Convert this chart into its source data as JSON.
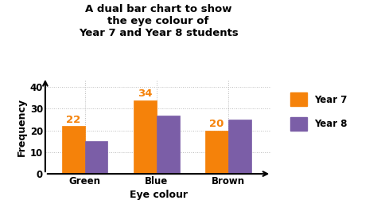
{
  "title": "A dual bar chart to show\nthe eye colour of\nYear 7 and Year 8 students",
  "categories": [
    "Green",
    "Blue",
    "Brown"
  ],
  "year7_values": [
    22,
    34,
    20
  ],
  "year8_values": [
    15,
    27,
    25
  ],
  "year7_color": "#F5820A",
  "year8_color": "#7B5EA7",
  "xlabel": "Eye colour",
  "ylabel": "Frequency",
  "yticks": [
    0,
    10,
    20,
    30,
    40
  ],
  "ylim": [
    0,
    43
  ],
  "bar_width": 0.32,
  "label_year7": "Year 7",
  "label_year8": "Year 8",
  "annotation_color": "#F5820A",
  "background_color": "#ffffff",
  "grid_color": "#bbbbbb",
  "title_fontsize": 9.5,
  "axis_label_fontsize": 9,
  "tick_fontsize": 8.5,
  "annotation_fontsize": 9.5,
  "legend_fontsize": 8.5
}
